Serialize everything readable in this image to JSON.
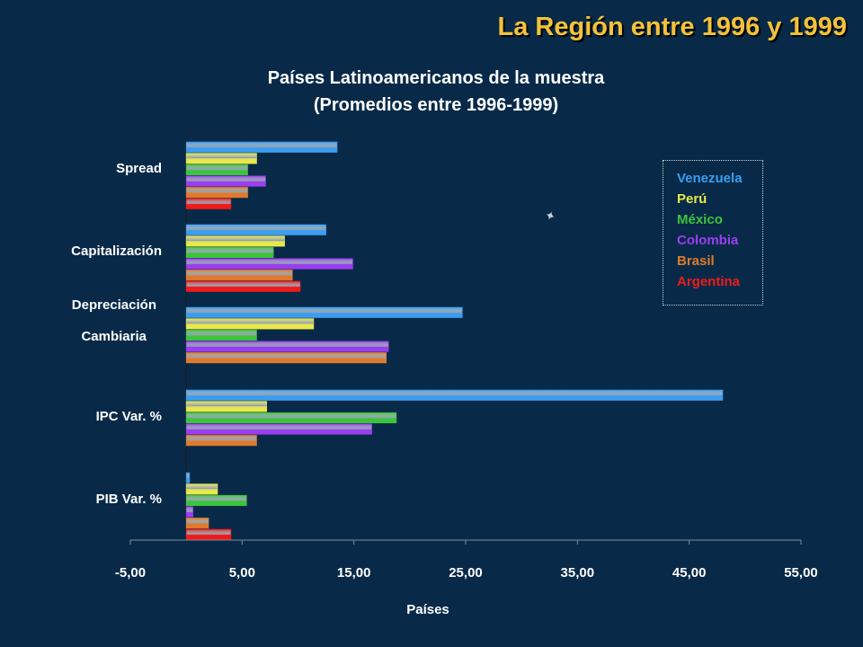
{
  "slide_title": "La Región entre 1996 y 1999",
  "chart_data": {
    "type": "bar",
    "orientation": "horizontal",
    "title_line1": "Países Latinoamericanos de la muestra",
    "title_line2": "(Promedios entre 1996-1999)",
    "xlabel": "Países",
    "xlim": [
      -5,
      55
    ],
    "xticks": [
      -5,
      5,
      15,
      25,
      35,
      45,
      55
    ],
    "xtick_labels": [
      "-5,00",
      "5,00",
      "15,00",
      "25,00",
      "35,00",
      "45,00",
      "55,00"
    ],
    "categories": [
      {
        "label": "Spread",
        "lines": [
          "Spread"
        ]
      },
      {
        "label": "Capitalización",
        "lines": [
          "Capitalización"
        ]
      },
      {
        "label": "Depreciación Cambiaria",
        "lines": [
          "Depreciación",
          "Cambiaria"
        ]
      },
      {
        "label": "IPC Var. %",
        "lines": [
          "IPC Var. %"
        ]
      },
      {
        "label": "PIB Var. %",
        "lines": [
          "PIB Var. %"
        ]
      }
    ],
    "legend_position": "right",
    "series": [
      {
        "name": "Venezuela",
        "color": "#3d9df0",
        "values": [
          13.5,
          12.5,
          24.7,
          48.0,
          0.3
        ]
      },
      {
        "name": "Perú",
        "color": "#e8e84a",
        "values": [
          6.3,
          8.8,
          11.4,
          7.2,
          2.8
        ]
      },
      {
        "name": "México",
        "color": "#3cc43c",
        "values": [
          5.5,
          7.8,
          6.3,
          18.8,
          5.4
        ]
      },
      {
        "name": "Colombia",
        "color": "#9a3ef0",
        "values": [
          7.1,
          14.9,
          18.1,
          16.6,
          0.6
        ]
      },
      {
        "name": "Brasil",
        "color": "#e07a2c",
        "values": [
          5.5,
          9.5,
          17.9,
          6.3,
          2.0
        ]
      },
      {
        "name": "Argentina",
        "color": "#f01a1a",
        "values": [
          4.0,
          10.2,
          0,
          0,
          4.0
        ]
      }
    ]
  }
}
